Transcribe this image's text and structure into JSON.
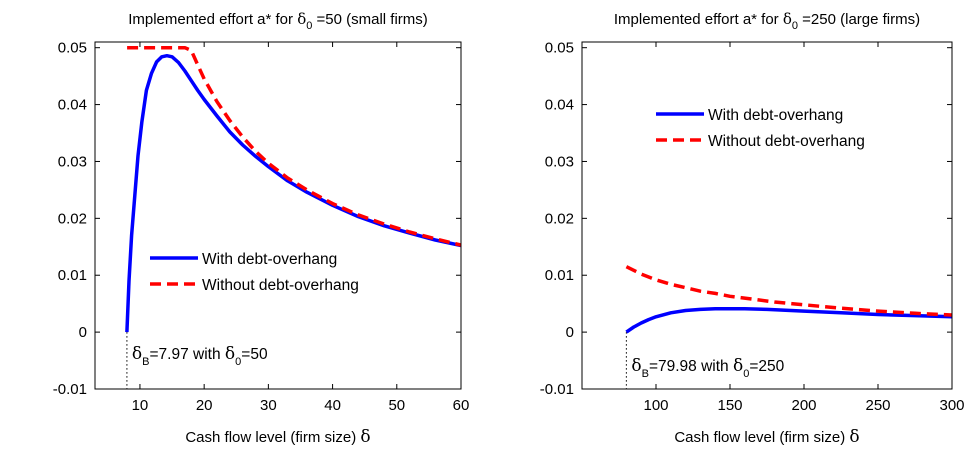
{
  "chart_data": [
    {
      "type": "line",
      "title": {
        "prefix": "Implemented effort a* for ",
        "sym": "δ",
        "sub": "0",
        "suffix": " =50 (small firms)"
      },
      "xlabel": {
        "text": "Cash flow level (firm size) ",
        "sym": "δ"
      },
      "ylabel": "",
      "xlim": [
        3,
        60
      ],
      "ylim": [
        -0.01,
        0.051
      ],
      "xticks": [
        10,
        20,
        30,
        40,
        50,
        60
      ],
      "xtick_labels": [
        "10",
        "20",
        "30",
        "40",
        "50",
        "60"
      ],
      "yticks": [
        -0.01,
        0,
        0.01,
        0.02,
        0.03,
        0.04,
        0.05
      ],
      "ytick_labels": [
        "-0.01",
        "0",
        "0.01",
        "0.02",
        "0.03",
        "0.04",
        "0.05"
      ],
      "legend": {
        "placement": "center-right",
        "entries": [
          "With debt-overhang",
          "Without debt-overhang"
        ]
      },
      "series": [
        {
          "name": "With debt-overhang",
          "color": "#0000ff",
          "dash": "solid",
          "x": [
            7.97,
            8.3,
            8.7,
            9.2,
            9.7,
            10.3,
            11.0,
            11.8,
            12.6,
            13.4,
            14.2,
            15.0,
            16.0,
            17.0,
            18.0,
            19.0,
            20.0,
            22.0,
            24.0,
            26.0,
            28.0,
            30.0,
            33.0,
            36.0,
            40.0,
            44.0,
            48.0,
            52.0,
            56.0,
            60.0
          ],
          "y": [
            0.0,
            0.009,
            0.017,
            0.024,
            0.031,
            0.037,
            0.0425,
            0.0455,
            0.0475,
            0.0484,
            0.0486,
            0.0484,
            0.0474,
            0.0459,
            0.0442,
            0.0425,
            0.0409,
            0.038,
            0.0352,
            0.0329,
            0.0309,
            0.0291,
            0.0266,
            0.0246,
            0.0223,
            0.0203,
            0.0187,
            0.0174,
            0.0162,
            0.0152
          ]
        },
        {
          "name": "Without debt-overhang",
          "color": "#ff0000",
          "dash": "dashed",
          "x": [
            8.0,
            10.0,
            12.0,
            14.0,
            16.0,
            17.0,
            18.0,
            19.0,
            20.0,
            22.0,
            24.0,
            26.0,
            28.0,
            30.0,
            33.0,
            36.0,
            40.0,
            44.0,
            48.0,
            52.0,
            56.0,
            60.0
          ],
          "y": [
            0.05,
            0.05,
            0.05,
            0.05,
            0.05,
            0.05,
            0.0495,
            0.047,
            0.0445,
            0.0405,
            0.0372,
            0.0343,
            0.0318,
            0.0297,
            0.0271,
            0.025,
            0.0226,
            0.0206,
            0.019,
            0.0176,
            0.0164,
            0.0153
          ]
        }
      ],
      "annotation": {
        "sym1": "δ",
        "sub1": "B",
        "text1": "=7.97 with ",
        "sym2": "δ",
        "sub2": "0",
        "text2": "=50",
        "marker_x": 7.97
      }
    },
    {
      "type": "line",
      "title": {
        "prefix": "Implemented effort a* for ",
        "sym": "δ",
        "sub": "0",
        "suffix": " =250 (large firms)"
      },
      "xlabel": {
        "text": "Cash flow level (firm size) ",
        "sym": "δ"
      },
      "ylabel": "",
      "xlim": [
        50,
        300
      ],
      "ylim": [
        -0.01,
        0.051
      ],
      "xticks": [
        100,
        150,
        200,
        250,
        300
      ],
      "xtick_labels": [
        "100",
        "150",
        "200",
        "250",
        "300"
      ],
      "yticks": [
        -0.01,
        0,
        0.01,
        0.02,
        0.03,
        0.04,
        0.05
      ],
      "ytick_labels": [
        "-0.01",
        "0",
        "0.01",
        "0.02",
        "0.03",
        "0.04",
        "0.05"
      ],
      "legend": {
        "placement": "upper-center",
        "entries": [
          "With debt-overhang",
          "Without debt-overhang"
        ]
      },
      "series": [
        {
          "name": "With debt-overhang",
          "color": "#0000ff",
          "dash": "solid",
          "x": [
            79.98,
            85,
            90,
            95,
            100,
            110,
            120,
            130,
            140,
            150,
            160,
            175,
            200,
            225,
            250,
            275,
            300
          ],
          "y": [
            0.0,
            0.0009,
            0.0016,
            0.0022,
            0.0027,
            0.0034,
            0.0038,
            0.004,
            0.0041,
            0.0041,
            0.0041,
            0.004,
            0.0037,
            0.0034,
            0.0031,
            0.0029,
            0.0027
          ]
        },
        {
          "name": "Without debt-overhang",
          "color": "#ff0000",
          "dash": "dashed",
          "x": [
            80,
            90,
            100,
            110,
            120,
            130,
            140,
            150,
            165,
            180,
            200,
            225,
            250,
            275,
            300
          ],
          "y": [
            0.0115,
            0.0102,
            0.0092,
            0.0084,
            0.0078,
            0.0072,
            0.0068,
            0.0063,
            0.0058,
            0.0053,
            0.0048,
            0.0042,
            0.0037,
            0.0033,
            0.003
          ]
        }
      ],
      "annotation": {
        "sym1": "δ",
        "sub1": "B",
        "text1": "=79.98 with ",
        "sym2": "δ",
        "sub2": "0",
        "text2": "=250",
        "marker_x": 79.98
      }
    }
  ]
}
